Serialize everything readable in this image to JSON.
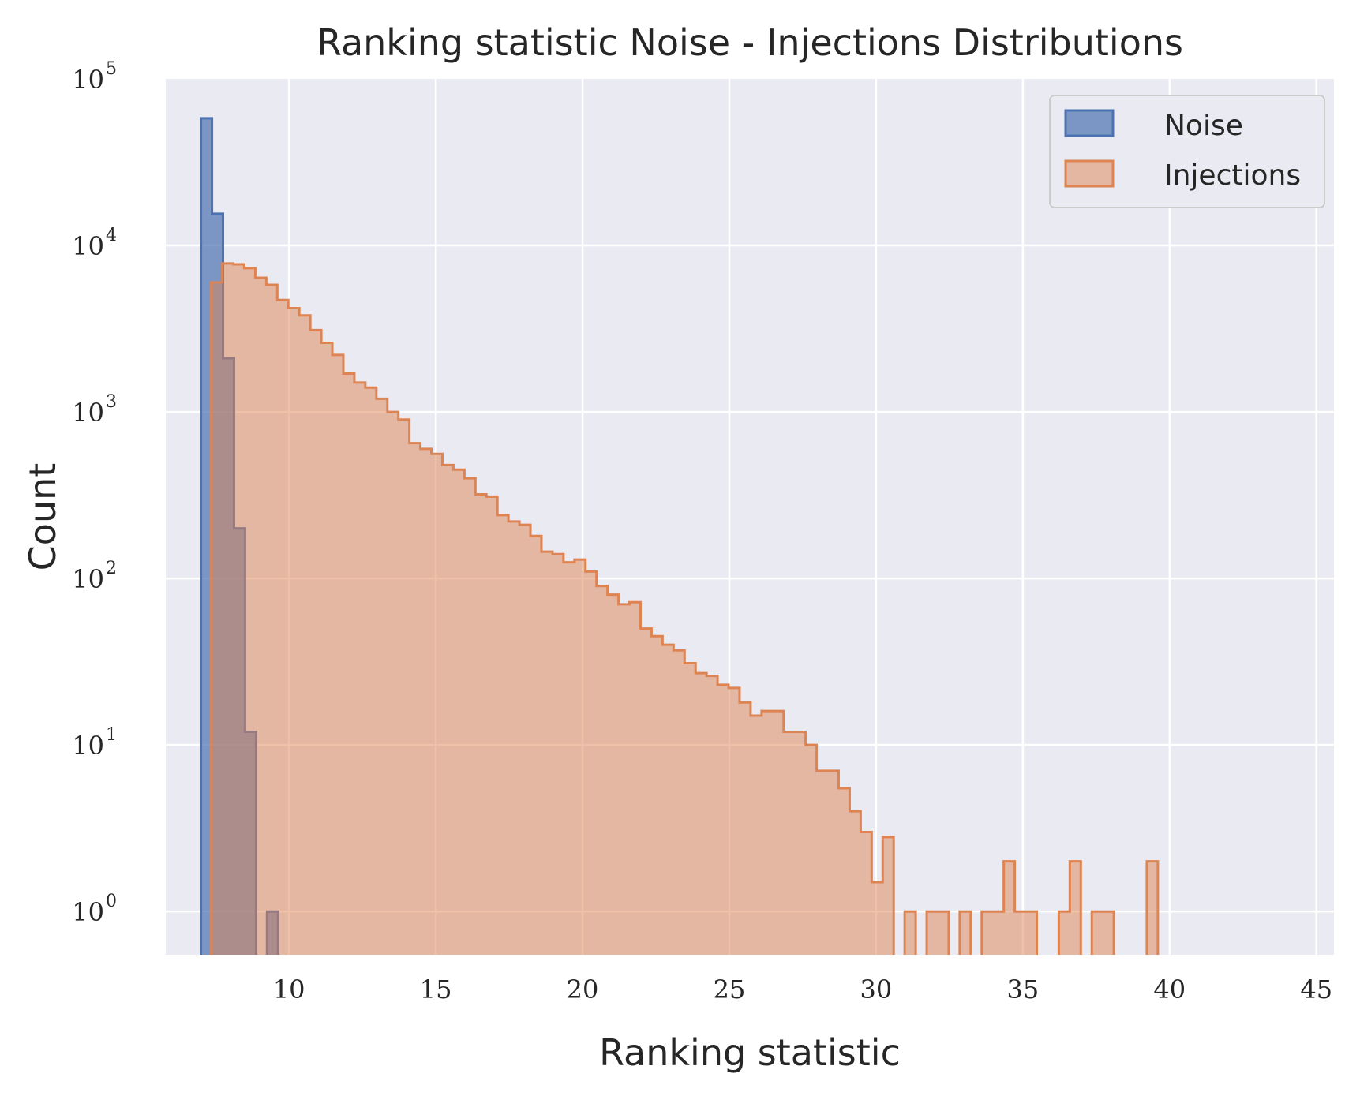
{
  "chart_data": {
    "type": "histogram",
    "title": "Ranking statistic Noise - Injections Distributions",
    "xlabel": "Ranking statistic",
    "ylabel": "Count",
    "xlim": [
      5.8,
      45.6
    ],
    "ylim": [
      0.55,
      100000
    ],
    "yscale": "log",
    "grid": true,
    "legend_position": "upper-right",
    "x_ticks": [
      "10",
      "15",
      "20",
      "25",
      "30",
      "35",
      "40",
      "45"
    ],
    "y_ticks": [
      {
        "base": "10",
        "exp": "0"
      },
      {
        "base": "10",
        "exp": "1"
      },
      {
        "base": "10",
        "exp": "2"
      },
      {
        "base": "10",
        "exp": "3"
      },
      {
        "base": "10",
        "exp": "4"
      },
      {
        "base": "10",
        "exp": "5"
      }
    ],
    "bin_width": 0.375,
    "series": [
      {
        "name": "Noise",
        "color": "#4c72b0",
        "bin_start": 7.0,
        "bin_width": 0.375,
        "counts": [
          58000,
          15500,
          2100,
          200,
          12,
          0,
          1
        ]
      },
      {
        "name": "Injections",
        "color": "#dd8452",
        "bin_start": 7.35,
        "bin_width": 0.375,
        "counts": [
          6000,
          7800,
          7700,
          7300,
          6400,
          5800,
          4700,
          4200,
          3800,
          3100,
          2600,
          2200,
          1700,
          1500,
          1400,
          1200,
          1000,
          900,
          650,
          600,
          560,
          480,
          450,
          400,
          320,
          310,
          240,
          220,
          210,
          180,
          145,
          140,
          125,
          130,
          110,
          90,
          80,
          70,
          72,
          50,
          45,
          40,
          37,
          31,
          27,
          26,
          23,
          22,
          18,
          15,
          16,
          16,
          12,
          12,
          10,
          7,
          7,
          5.5,
          4,
          3,
          1.5,
          2.8,
          0,
          1,
          0,
          1,
          1,
          0,
          1,
          0,
          1,
          1,
          2,
          1,
          1,
          0,
          0,
          1,
          2,
          0,
          1,
          1,
          0,
          0,
          0,
          2
        ]
      }
    ]
  }
}
